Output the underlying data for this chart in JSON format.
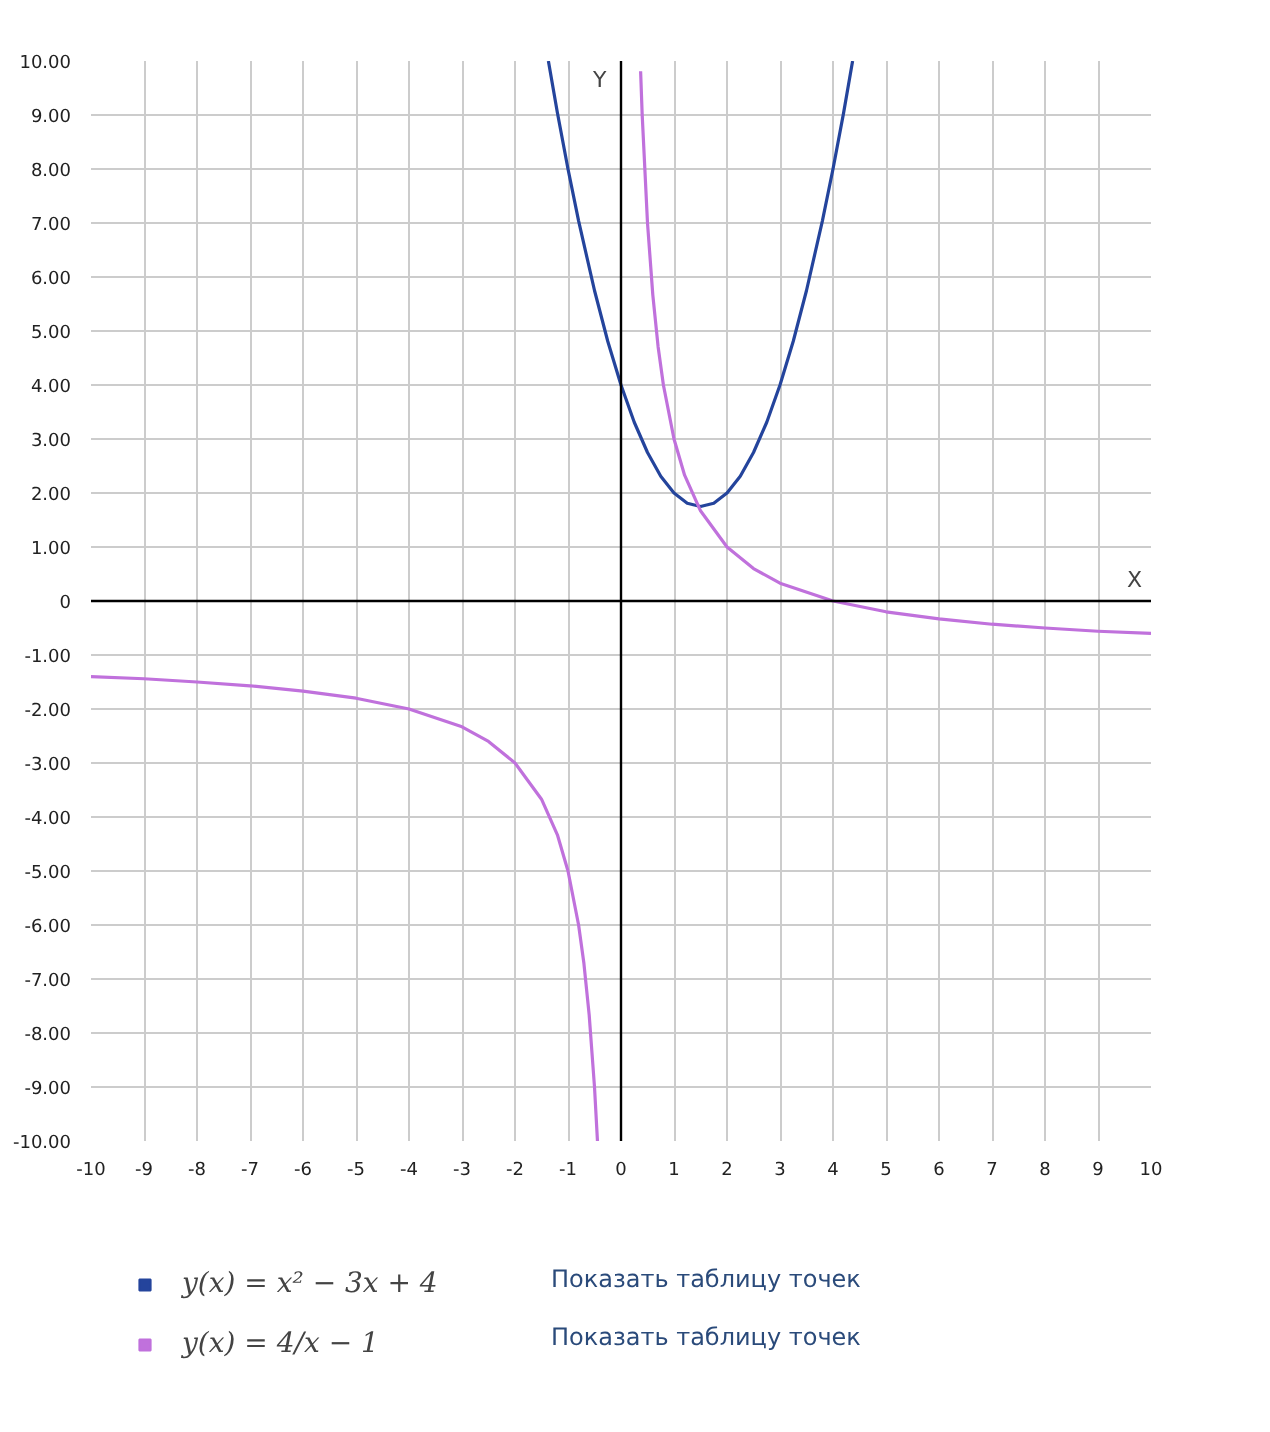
{
  "chart_data": {
    "type": "line",
    "xlabel": "X",
    "ylabel": "Y",
    "xlim": [
      -10,
      10
    ],
    "ylim": [
      -10,
      10
    ],
    "xticks": [
      -10,
      -9,
      -8,
      -7,
      -6,
      -5,
      -4,
      -3,
      -2,
      -1,
      0,
      1,
      2,
      3,
      4,
      5,
      6,
      7,
      8,
      9,
      10
    ],
    "yticks": [
      {
        "value": -10,
        "label": "-10.00"
      },
      {
        "value": -9,
        "label": "-9.00"
      },
      {
        "value": -8,
        "label": "-8.00"
      },
      {
        "value": -7,
        "label": "-7.00"
      },
      {
        "value": -6,
        "label": "-6.00"
      },
      {
        "value": -5,
        "label": "-5.00"
      },
      {
        "value": -4,
        "label": "-4.00"
      },
      {
        "value": -3,
        "label": "-3.00"
      },
      {
        "value": -2,
        "label": "-2.00"
      },
      {
        "value": -1,
        "label": "-1.00"
      },
      0,
      {
        "value": 1,
        "label": "1.00"
      },
      {
        "value": 2,
        "label": "2.00"
      },
      {
        "value": 3,
        "label": "3.00"
      },
      {
        "value": 4,
        "label": "4.00"
      },
      {
        "value": 5,
        "label": "5.00"
      },
      {
        "value": 6,
        "label": "6.00"
      },
      {
        "value": 7,
        "label": "7.00"
      },
      {
        "value": 8,
        "label": "8.00"
      },
      {
        "value": 9,
        "label": "9.00"
      },
      {
        "value": 10,
        "label": "10.00"
      }
    ],
    "grid": true,
    "legend": "bottom",
    "marker": "none",
    "line_style": "solid",
    "series": [
      {
        "name": "y(x) = x² − 3x + 4",
        "color": "#24449c",
        "x": [
          -1.37,
          -1.2,
          -1,
          -0.8,
          -0.5,
          -0.25,
          0,
          0.25,
          0.5,
          0.75,
          1,
          1.25,
          1.5,
          1.75,
          2,
          2.25,
          2.5,
          2.75,
          3,
          3.25,
          3.5,
          3.8,
          4,
          4.2,
          4.37
        ],
        "values": [
          10.0,
          9.04,
          8,
          7.04,
          5.75,
          4.81,
          4,
          3.31,
          2.75,
          2.31,
          2,
          1.81,
          1.75,
          1.81,
          2,
          2.31,
          2.75,
          3.31,
          4,
          4.81,
          5.75,
          7.04,
          8,
          9.04,
          10.0
        ]
      },
      {
        "name": "y(x) = 4/x − 1",
        "color": "#c071dc",
        "x": [
          -10,
          -9,
          -8,
          -7,
          -6,
          -5,
          -4,
          -3,
          -2.5,
          -2,
          -1.5,
          -1.2,
          -1,
          -0.8,
          -0.7,
          -0.6,
          -0.5,
          -0.444,
          0,
          0.37,
          0.4,
          0.5,
          0.6,
          0.7,
          0.8,
          1,
          1.2,
          1.5,
          2,
          2.5,
          3,
          4,
          5,
          6,
          7,
          8,
          9,
          10
        ],
        "values": [
          -1.4,
          -1.44,
          -1.5,
          -1.57,
          -1.67,
          -1.8,
          -2,
          -2.33,
          -2.6,
          -3,
          -3.67,
          -4.33,
          -5,
          -6,
          -6.71,
          -7.67,
          -9,
          -10.0,
          null,
          9.81,
          9,
          7,
          5.67,
          4.71,
          4,
          3,
          2.33,
          1.67,
          1,
          0.6,
          0.33,
          0,
          -0.2,
          -0.33,
          -0.43,
          -0.5,
          -0.56,
          -0.6
        ]
      }
    ],
    "annotations": [
      "Показать таблицу точек",
      "Показать таблицу точек"
    ]
  }
}
